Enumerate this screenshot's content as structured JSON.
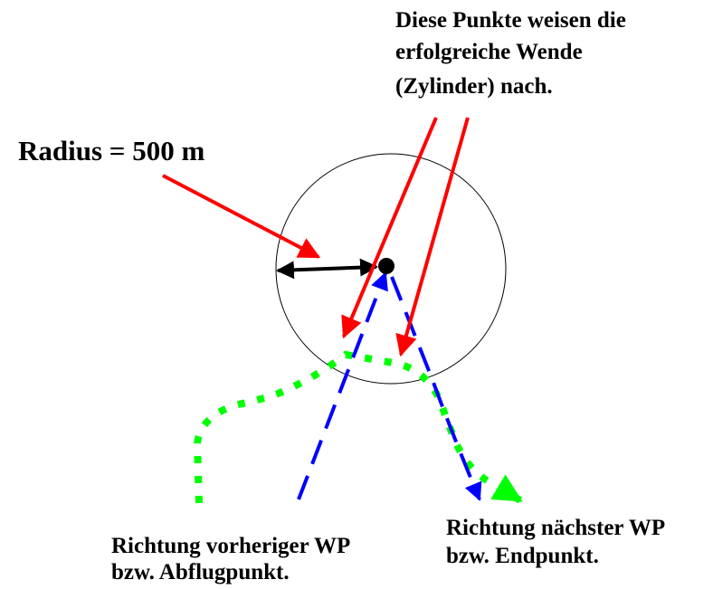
{
  "annotations": {
    "points_note": [
      "Diese Punkte weisen die",
      "erfolgreiche Wende",
      "(Zylinder) nach."
    ],
    "radius": "Radius = 500 m",
    "previous_wp": [
      "Richtung vorheriger WP",
      "bzw. Abflugpunkt."
    ],
    "next_wp": [
      "Richtung nächster WP",
      "bzw. Endpunkt."
    ]
  }
}
